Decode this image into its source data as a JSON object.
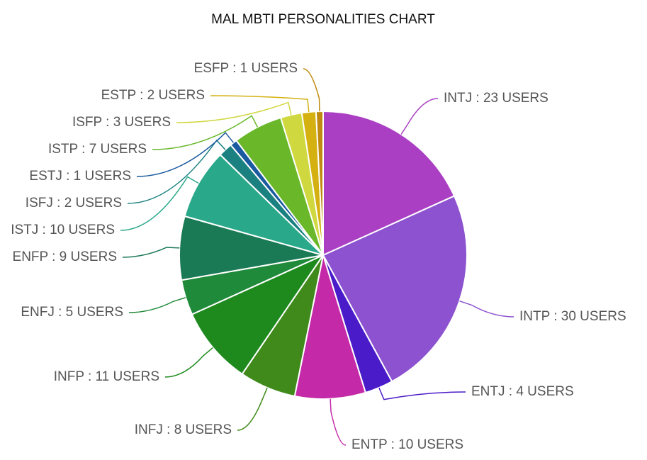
{
  "chart_data": {
    "type": "pie",
    "title": "MAL MBTI PERSONALITIES CHART",
    "values": [
      23,
      30,
      4,
      10,
      8,
      11,
      5,
      9,
      10,
      2,
      1,
      7,
      3,
      2,
      1
    ],
    "value_labels": [
      "INTJ : 23 USERS",
      "INTP : 30 USERS",
      "ENTJ : 4 USERS",
      "ENTP : 10 USERS",
      "INFJ : 8 USERS",
      "INFP : 11 USERS",
      "ENFJ : 5 USERS",
      "ENFP : 9 USERS",
      "ISTJ : 10 USERS",
      "ISFJ : 2 USERS",
      "ESTJ : 1 USERS",
      "ISTP : 7 USERS",
      "ISFP : 3 USERS",
      "ESTP : 2 USERS",
      "ESFP : 1 USERS"
    ],
    "colors": [
      "#ab3fc4",
      "#8c52cf",
      "#4a1bc8",
      "#c42aa8",
      "#3f8a1a",
      "#1e8a1e",
      "#1f8a3a",
      "#1a7a55",
      "#2aa88a",
      "#1a8080",
      "#1a5aa0",
      "#6ab82a",
      "#d0d840",
      "#d4b010",
      "#c08a10"
    ]
  }
}
